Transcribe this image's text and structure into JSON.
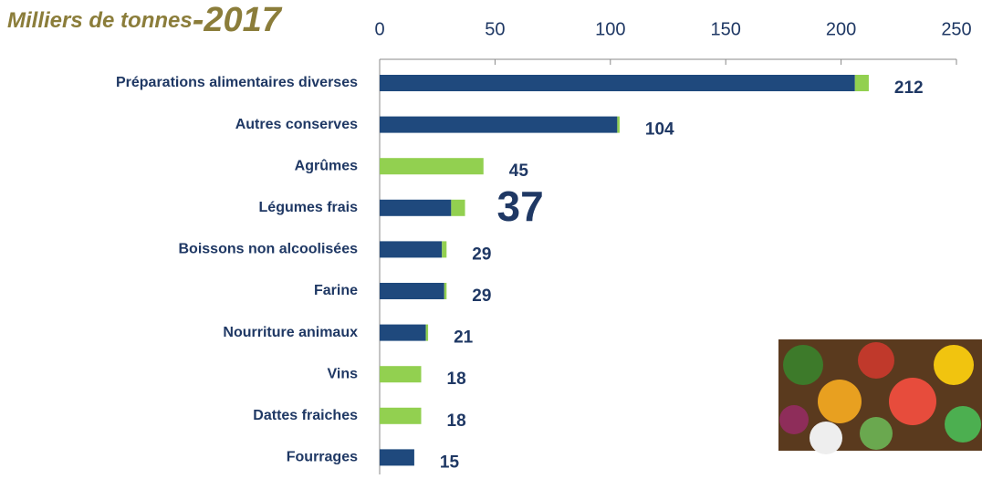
{
  "chart_data": {
    "type": "stacked_barh",
    "title": "Milliers de tonnes",
    "subtitle": "-2017",
    "categories": [
      "Préparations alimentaires diverses",
      "Autres conserves",
      "Agrûmes",
      "Légumes frais",
      "Boissons non alcoolisées",
      "Farine",
      "Nourriture animaux",
      "Vins",
      "Dattes fraiches",
      "Fourrages"
    ],
    "series": [
      {
        "color": "#1f497d",
        "values": [
          206,
          103,
          0,
          31,
          27,
          28,
          20,
          0,
          0,
          15
        ]
      },
      {
        "color": "#92d050",
        "values": [
          6,
          1,
          45,
          6,
          2,
          1,
          1,
          18,
          18,
          0
        ]
      }
    ],
    "totals": [
      212,
      104,
      45,
      37,
      29,
      29,
      21,
      18,
      18,
      15
    ],
    "highlight": "Légumes frais",
    "xlim": [
      0,
      250
    ],
    "xticks": [
      0,
      50,
      100,
      150,
      200,
      250
    ]
  }
}
